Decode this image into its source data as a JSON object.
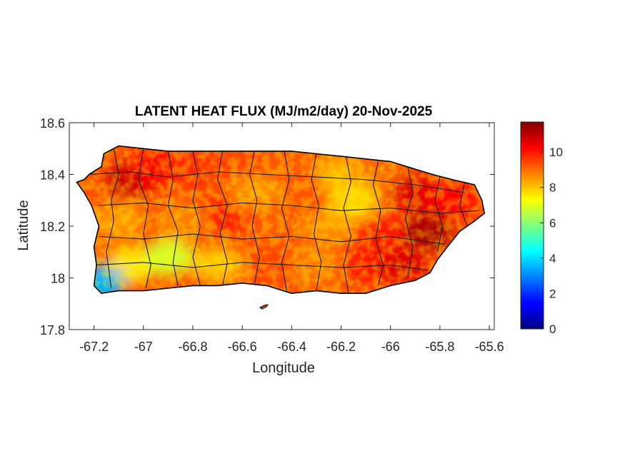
{
  "figure": {
    "title": "LATENT HEAT FLUX (MJ/m2/day) 20-Nov-2025",
    "xlabel": "Longitude",
    "ylabel": "Latitude"
  },
  "chart_data": {
    "type": "heatmap",
    "title": "LATENT HEAT FLUX (MJ/m2/day) 20-Nov-2025",
    "xlabel": "Longitude",
    "ylabel": "Latitude",
    "xlim": [
      -67.3,
      -65.58
    ],
    "ylim": [
      17.8,
      18.6
    ],
    "x_ticks": [
      -67.2,
      -67,
      -66.8,
      -66.6,
      -66.4,
      -66.2,
      -66,
      -65.8,
      -65.6
    ],
    "x_tick_labels": [
      "-67.2",
      "-67",
      "-66.8",
      "-66.6",
      "-66.4",
      "-66.2",
      "-66",
      "-65.8",
      "-65.6"
    ],
    "y_ticks": [
      17.8,
      18,
      18.2,
      18.4,
      18.6
    ],
    "y_tick_labels": [
      "17.8",
      "18",
      "18.2",
      "18.4",
      "18.6"
    ],
    "colorbar": {
      "colormap": "jet",
      "clim": [
        0,
        11.7
      ],
      "ticks": [
        0,
        2,
        4,
        6,
        8,
        10
      ],
      "tick_labels": [
        "0",
        "2",
        "4",
        "6",
        "8",
        "10"
      ]
    },
    "island_outline": [
      [
        -67.27,
        18.37
      ],
      [
        -67.24,
        18.38
      ],
      [
        -67.22,
        18.4
      ],
      [
        -67.17,
        18.43
      ],
      [
        -67.16,
        18.48
      ],
      [
        -67.1,
        18.51
      ],
      [
        -67.0,
        18.5
      ],
      [
        -66.9,
        18.49
      ],
      [
        -66.8,
        18.49
      ],
      [
        -66.7,
        18.49
      ],
      [
        -66.6,
        18.49
      ],
      [
        -66.5,
        18.49
      ],
      [
        -66.4,
        18.49
      ],
      [
        -66.3,
        18.48
      ],
      [
        -66.2,
        18.47
      ],
      [
        -66.1,
        18.46
      ],
      [
        -66.0,
        18.45
      ],
      [
        -65.9,
        18.42
      ],
      [
        -65.83,
        18.4
      ],
      [
        -65.75,
        18.38
      ],
      [
        -65.66,
        18.36
      ],
      [
        -65.63,
        18.3
      ],
      [
        -65.62,
        18.25
      ],
      [
        -65.66,
        18.22
      ],
      [
        -65.72,
        18.18
      ],
      [
        -65.77,
        18.12
      ],
      [
        -65.81,
        18.07
      ],
      [
        -65.84,
        18.02
      ],
      [
        -65.9,
        17.99
      ],
      [
        -66.0,
        17.97
      ],
      [
        -66.1,
        17.94
      ],
      [
        -66.2,
        17.94
      ],
      [
        -66.3,
        17.95
      ],
      [
        -66.4,
        17.94
      ],
      [
        -66.5,
        17.97
      ],
      [
        -66.6,
        17.98
      ],
      [
        -66.7,
        17.97
      ],
      [
        -66.8,
        17.97
      ],
      [
        -66.9,
        17.96
      ],
      [
        -67.0,
        17.95
      ],
      [
        -67.1,
        17.95
      ],
      [
        -67.17,
        17.94
      ],
      [
        -67.2,
        17.97
      ],
      [
        -67.19,
        18.05
      ],
      [
        -67.2,
        18.12
      ],
      [
        -67.18,
        18.2
      ],
      [
        -67.21,
        18.28
      ],
      [
        -67.24,
        18.33
      ]
    ],
    "value_zones": [
      {
        "lon": -67.05,
        "lat": 18.38,
        "value": 10.8
      },
      {
        "lon": -66.95,
        "lat": 18.43,
        "value": 10.3
      },
      {
        "lon": -66.8,
        "lat": 18.42,
        "value": 9.8
      },
      {
        "lon": -66.6,
        "lat": 18.42,
        "value": 9.5
      },
      {
        "lon": -66.4,
        "lat": 18.42,
        "value": 9.2
      },
      {
        "lon": -66.2,
        "lat": 18.4,
        "value": 8.2
      },
      {
        "lon": -66.05,
        "lat": 18.4,
        "value": 9.0
      },
      {
        "lon": -65.9,
        "lat": 18.33,
        "value": 10.6
      },
      {
        "lon": -65.75,
        "lat": 18.3,
        "value": 10.2
      },
      {
        "lon": -65.85,
        "lat": 18.18,
        "value": 11.2
      },
      {
        "lon": -66.05,
        "lat": 18.18,
        "value": 10.0
      },
      {
        "lon": -66.25,
        "lat": 18.2,
        "value": 8.6
      },
      {
        "lon": -66.45,
        "lat": 18.2,
        "value": 9.2
      },
      {
        "lon": -66.65,
        "lat": 18.25,
        "value": 10.0
      },
      {
        "lon": -66.85,
        "lat": 18.22,
        "value": 8.8
      },
      {
        "lon": -67.1,
        "lat": 18.22,
        "value": 8.5
      },
      {
        "lon": -67.05,
        "lat": 18.05,
        "value": 7.6
      },
      {
        "lon": -66.9,
        "lat": 18.08,
        "value": 6.8
      },
      {
        "lon": -66.7,
        "lat": 18.05,
        "value": 8.0
      },
      {
        "lon": -66.5,
        "lat": 18.05,
        "value": 9.5
      },
      {
        "lon": -66.3,
        "lat": 18.05,
        "value": 8.8
      },
      {
        "lon": -66.1,
        "lat": 18.05,
        "value": 10.0
      },
      {
        "lon": -65.95,
        "lat": 18.05,
        "value": 10.6
      },
      {
        "lon": -66.55,
        "lat": 18.33,
        "value": 8.6
      },
      {
        "lon": -66.15,
        "lat": 18.3,
        "value": 7.8
      },
      {
        "lon": -67.18,
        "lat": 17.98,
        "value": 3.5
      }
    ],
    "municipal_boundaries": [
      [
        [
          -67.12,
          18.5
        ],
        [
          -67.1,
          18.4
        ],
        [
          -67.13,
          18.3
        ],
        [
          -67.12,
          18.22
        ],
        [
          -67.15,
          18.1
        ],
        [
          -67.13,
          17.96
        ]
      ],
      [
        [
          -67.0,
          18.5
        ],
        [
          -67.02,
          18.38
        ],
        [
          -66.98,
          18.28
        ],
        [
          -67.0,
          18.17
        ],
        [
          -66.97,
          18.05
        ],
        [
          -66.99,
          17.96
        ]
      ],
      [
        [
          -66.9,
          18.49
        ],
        [
          -66.88,
          18.38
        ],
        [
          -66.9,
          18.28
        ],
        [
          -66.86,
          18.18
        ],
        [
          -66.88,
          18.06
        ],
        [
          -66.86,
          17.97
        ]
      ],
      [
        [
          -66.8,
          18.49
        ],
        [
          -66.78,
          18.4
        ],
        [
          -66.8,
          18.3
        ],
        [
          -66.77,
          18.2
        ],
        [
          -66.8,
          18.08
        ],
        [
          -66.77,
          17.97
        ]
      ],
      [
        [
          -66.68,
          18.49
        ],
        [
          -66.7,
          18.38
        ],
        [
          -66.66,
          18.28
        ],
        [
          -66.69,
          18.17
        ],
        [
          -66.66,
          18.06
        ],
        [
          -66.68,
          17.97
        ]
      ],
      [
        [
          -66.55,
          18.49
        ],
        [
          -66.57,
          18.4
        ],
        [
          -66.54,
          18.3
        ],
        [
          -66.56,
          18.2
        ],
        [
          -66.53,
          18.08
        ],
        [
          -66.55,
          17.98
        ]
      ],
      [
        [
          -66.43,
          18.49
        ],
        [
          -66.41,
          18.38
        ],
        [
          -66.44,
          18.27
        ],
        [
          -66.41,
          18.16
        ],
        [
          -66.44,
          18.06
        ],
        [
          -66.42,
          17.95
        ]
      ],
      [
        [
          -66.3,
          18.48
        ],
        [
          -66.32,
          18.38
        ],
        [
          -66.29,
          18.28
        ],
        [
          -66.31,
          18.17
        ],
        [
          -66.28,
          18.06
        ],
        [
          -66.3,
          17.95
        ]
      ],
      [
        [
          -66.18,
          18.47
        ],
        [
          -66.16,
          18.37
        ],
        [
          -66.19,
          18.27
        ],
        [
          -66.16,
          18.16
        ],
        [
          -66.19,
          18.05
        ],
        [
          -66.17,
          17.94
        ]
      ],
      [
        [
          -66.05,
          18.45
        ],
        [
          -66.07,
          18.36
        ],
        [
          -66.04,
          18.26
        ],
        [
          -66.06,
          18.15
        ],
        [
          -66.03,
          18.05
        ],
        [
          -66.05,
          17.97
        ]
      ],
      [
        [
          -65.93,
          18.43
        ],
        [
          -65.91,
          18.33
        ],
        [
          -65.94,
          18.23
        ],
        [
          -65.91,
          18.12
        ],
        [
          -65.93,
          18.0
        ]
      ],
      [
        [
          -65.8,
          18.39
        ],
        [
          -65.82,
          18.3
        ],
        [
          -65.79,
          18.2
        ],
        [
          -65.81,
          18.1
        ]
      ],
      [
        [
          -65.7,
          18.37
        ],
        [
          -65.72,
          18.28
        ],
        [
          -65.69,
          18.2
        ]
      ],
      [
        [
          -67.22,
          18.4
        ],
        [
          -67.05,
          18.41
        ],
        [
          -66.9,
          18.39
        ],
        [
          -66.7,
          18.41
        ],
        [
          -66.5,
          18.4
        ],
        [
          -66.3,
          18.39
        ],
        [
          -66.1,
          18.38
        ],
        [
          -65.9,
          18.36
        ],
        [
          -65.7,
          18.33
        ]
      ],
      [
        [
          -67.18,
          18.28
        ],
        [
          -67.0,
          18.29
        ],
        [
          -66.8,
          18.27
        ],
        [
          -66.6,
          18.29
        ],
        [
          -66.4,
          18.28
        ],
        [
          -66.2,
          18.26
        ],
        [
          -66.0,
          18.27
        ],
        [
          -65.8,
          18.25
        ],
        [
          -65.64,
          18.26
        ]
      ],
      [
        [
          -67.18,
          18.16
        ],
        [
          -67.0,
          18.15
        ],
        [
          -66.8,
          18.17
        ],
        [
          -66.6,
          18.15
        ],
        [
          -66.4,
          18.16
        ],
        [
          -66.2,
          18.14
        ],
        [
          -66.0,
          18.16
        ],
        [
          -65.78,
          18.13
        ]
      ],
      [
        [
          -67.19,
          18.05
        ],
        [
          -67.0,
          18.06
        ],
        [
          -66.8,
          18.04
        ],
        [
          -66.6,
          18.06
        ],
        [
          -66.4,
          18.05
        ],
        [
          -66.2,
          18.04
        ],
        [
          -66.0,
          18.05
        ],
        [
          -65.85,
          18.03
        ]
      ]
    ]
  }
}
